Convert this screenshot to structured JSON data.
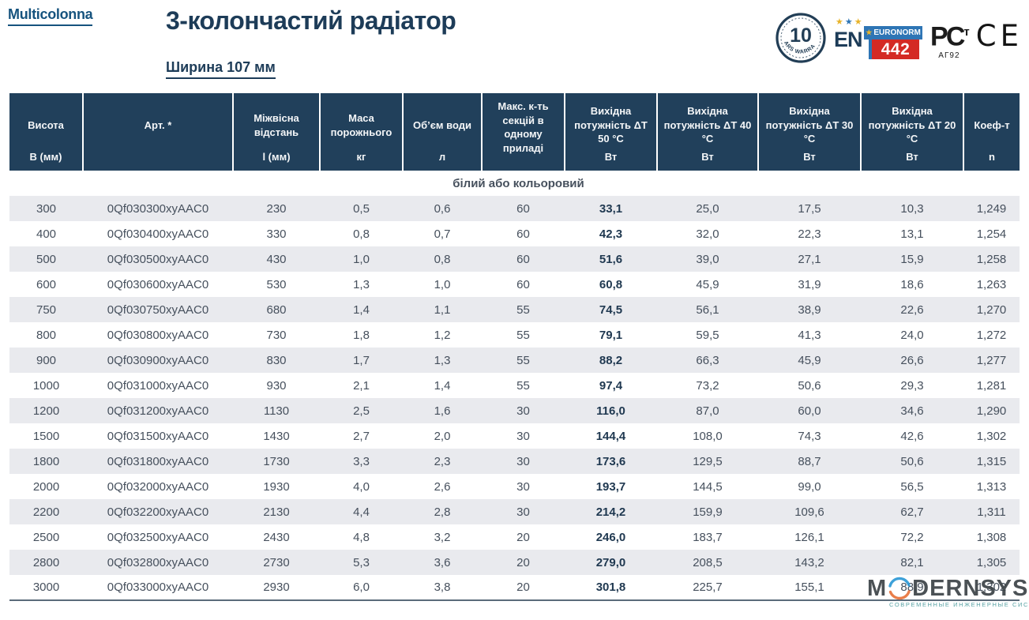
{
  "brand": {
    "logo": "Multicolonna"
  },
  "header": {
    "title": "3-колончастий радіатор",
    "subtitle": "Ширина 107 мм"
  },
  "badges": {
    "warranty": {
      "number": "10",
      "ring_text": "YEARS WARRANTY"
    },
    "en442": {
      "en": "EN",
      "euronorm": "EURONORM",
      "number": "442"
    },
    "rostest": {
      "mark": "РС",
      "mark_small": "т",
      "sub": "АГ92"
    },
    "ce": "CE"
  },
  "colors": {
    "header_bg": "#21405b",
    "navy_text": "#1d3c58",
    "stripe": "#e9eaee",
    "euronorm_blue": "#2e75b5",
    "n442_red": "#d42a24",
    "wm_blue": "#2e9ad6",
    "wm_orange": "#e8743b",
    "wm_teal": "#4b9b9d"
  },
  "table": {
    "section_label": "білий або кольоровий",
    "columns": [
      {
        "label": "Висота",
        "unit": "В (мм)"
      },
      {
        "label": "Арт. *",
        "unit": ""
      },
      {
        "label": "Міжвісна відстань",
        "unit": "l (мм)"
      },
      {
        "label": "Маса порожнього",
        "unit": "кг"
      },
      {
        "label": "Об’єм води",
        "unit": "л"
      },
      {
        "label": "Макс. к-ть секцій в одному приладі",
        "unit": ""
      },
      {
        "label": "Вихідна потужність ΔT 50 °C",
        "unit": "Вт"
      },
      {
        "label": "Вихідна потужність ΔT 40 °C",
        "unit": "Вт"
      },
      {
        "label": "Вихідна потужність ΔT 30 °C",
        "unit": "Вт"
      },
      {
        "label": "Вихідна потужність ΔT 20 °C",
        "unit": "Вт"
      },
      {
        "label": "Коеф-т",
        "unit": "n"
      }
    ],
    "rows": [
      [
        "300",
        "0Qf030300xyAAC0",
        "230",
        "0,5",
        "0,6",
        "60",
        "33,1",
        "25,0",
        "17,5",
        "10,3",
        "1,249"
      ],
      [
        "400",
        "0Qf030400xyAAC0",
        "330",
        "0,8",
        "0,7",
        "60",
        "42,3",
        "32,0",
        "22,3",
        "13,1",
        "1,254"
      ],
      [
        "500",
        "0Qf030500xyAAC0",
        "430",
        "1,0",
        "0,8",
        "60",
        "51,6",
        "39,0",
        "27,1",
        "15,9",
        "1,258"
      ],
      [
        "600",
        "0Qf030600xyAAC0",
        "530",
        "1,3",
        "1,0",
        "60",
        "60,8",
        "45,9",
        "31,9",
        "18,6",
        "1,263"
      ],
      [
        "750",
        "0Qf030750xyAAC0",
        "680",
        "1,4",
        "1,1",
        "55",
        "74,5",
        "56,1",
        "38,9",
        "22,6",
        "1,270"
      ],
      [
        "800",
        "0Qf030800xyAAC0",
        "730",
        "1,8",
        "1,2",
        "55",
        "79,1",
        "59,5",
        "41,3",
        "24,0",
        "1,272"
      ],
      [
        "900",
        "0Qf030900xyAAC0",
        "830",
        "1,7",
        "1,3",
        "55",
        "88,2",
        "66,3",
        "45,9",
        "26,6",
        "1,277"
      ],
      [
        "1000",
        "0Qf031000xyAAC0",
        "930",
        "2,1",
        "1,4",
        "55",
        "97,4",
        "73,2",
        "50,6",
        "29,3",
        "1,281"
      ],
      [
        "1200",
        "0Qf031200xyAAC0",
        "1130",
        "2,5",
        "1,6",
        "30",
        "116,0",
        "87,0",
        "60,0",
        "34,6",
        "1,290"
      ],
      [
        "1500",
        "0Qf031500xyAAC0",
        "1430",
        "2,7",
        "2,0",
        "30",
        "144,4",
        "108,0",
        "74,3",
        "42,6",
        "1,302"
      ],
      [
        "1800",
        "0Qf031800xyAAC0",
        "1730",
        "3,3",
        "2,3",
        "30",
        "173,6",
        "129,5",
        "88,7",
        "50,6",
        "1,315"
      ],
      [
        "2000",
        "0Qf032000xyAAC0",
        "1930",
        "4,0",
        "2,6",
        "30",
        "193,7",
        "144,5",
        "99,0",
        "56,5",
        "1,313"
      ],
      [
        "2200",
        "0Qf032200xyAAC0",
        "2130",
        "4,4",
        "2,8",
        "30",
        "214,2",
        "159,9",
        "109,6",
        "62,7",
        "1,311"
      ],
      [
        "2500",
        "0Qf032500xyAAC0",
        "2430",
        "4,8",
        "3,2",
        "20",
        "246,0",
        "183,7",
        "126,1",
        "72,2",
        "1,308"
      ],
      [
        "2800",
        "0Qf032800xyAAC0",
        "2730",
        "5,3",
        "3,6",
        "20",
        "279,0",
        "208,5",
        "143,2",
        "82,1",
        "1,305"
      ],
      [
        "3000",
        "0Qf033000xyAAC0",
        "2930",
        "6,0",
        "3,8",
        "20",
        "301,8",
        "225,7",
        "155,1",
        "88,9",
        "1,302"
      ]
    ],
    "bold_column_index": 6
  },
  "watermark": {
    "name_first": "M",
    "name_rest": "DERNSYS",
    "tagline": "СОВРЕМЕННЫЕ ИНЖЕНЕРНЫЕ СИСТЕМЫ"
  }
}
